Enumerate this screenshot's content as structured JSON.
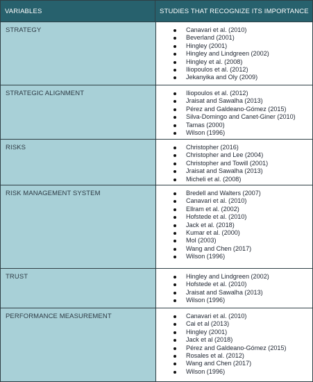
{
  "header": {
    "col1": "VARIABLES",
    "col2": "STUDIES THAT RECOGNIZE ITS IMPORTANCE"
  },
  "rows": [
    {
      "variable": "STRATEGY",
      "studies": [
        "Canavari et al. (2010)",
        "Beverland (2001)",
        "Hingley (2001)",
        "Hingley and Lindgreen (2002)",
        "Hingley et al. (2008)",
        "Iliopoulos et al. (2012)",
        "Jekanyika and Oly (2009)"
      ]
    },
    {
      "variable": "STRATEGIC ALIGNMENT",
      "studies": [
        "Iliopoulos et al. (2012)",
        "Jraisat and Sawalha (2013)",
        "Pérez and Galdeano-Gómez (2015)",
        "Silva-Domingo and Canet-Giner (2010)",
        "Tamas (2000)",
        "Wilson (1996)"
      ]
    },
    {
      "variable": "RISKS",
      "studies": [
        "Christopher (2016)",
        "Christopher and Lee (2004)",
        "Christopher and Towill (2001)",
        "Jraisat and Sawalha (2013)",
        "Micheli et al. (2008)"
      ]
    },
    {
      "variable": "RISK MANAGEMENT SYSTEM",
      "studies": [
        "Bredell and Walters (2007)",
        "Canavari et al. (2010)",
        "Ellram et al. (2002)",
        "Hofstede et al. (2010)",
        "Jack et al. (2018)",
        "Kumar et al. (2000)",
        "Mol (2003)",
        "Wang and Chen (2017)",
        "Wilson (1996)"
      ]
    },
    {
      "variable": "TRUST",
      "studies": [
        "Hingley and Lindgreen (2002)",
        "Hofstede et al. (2010)",
        "Jraisat and Sawalha (2013)",
        "Wilson (1996)"
      ]
    },
    {
      "variable": "PERFORMANCE MEASUREMENT",
      "studies": [
        "Canavari et al. (2010)",
        "Cai et al (2013)",
        "Hingley (2001)",
        "Jack et al (2018)",
        "Pérez and Galdeano-Gómez (2015)",
        "Rosales et al. (2012)",
        "Wang and Chen (2017)",
        "Wilson (1996)"
      ]
    }
  ],
  "colors": {
    "header_bg": "#27616d",
    "variable_bg": "#a8d0d7",
    "border": "#2f3f45"
  }
}
